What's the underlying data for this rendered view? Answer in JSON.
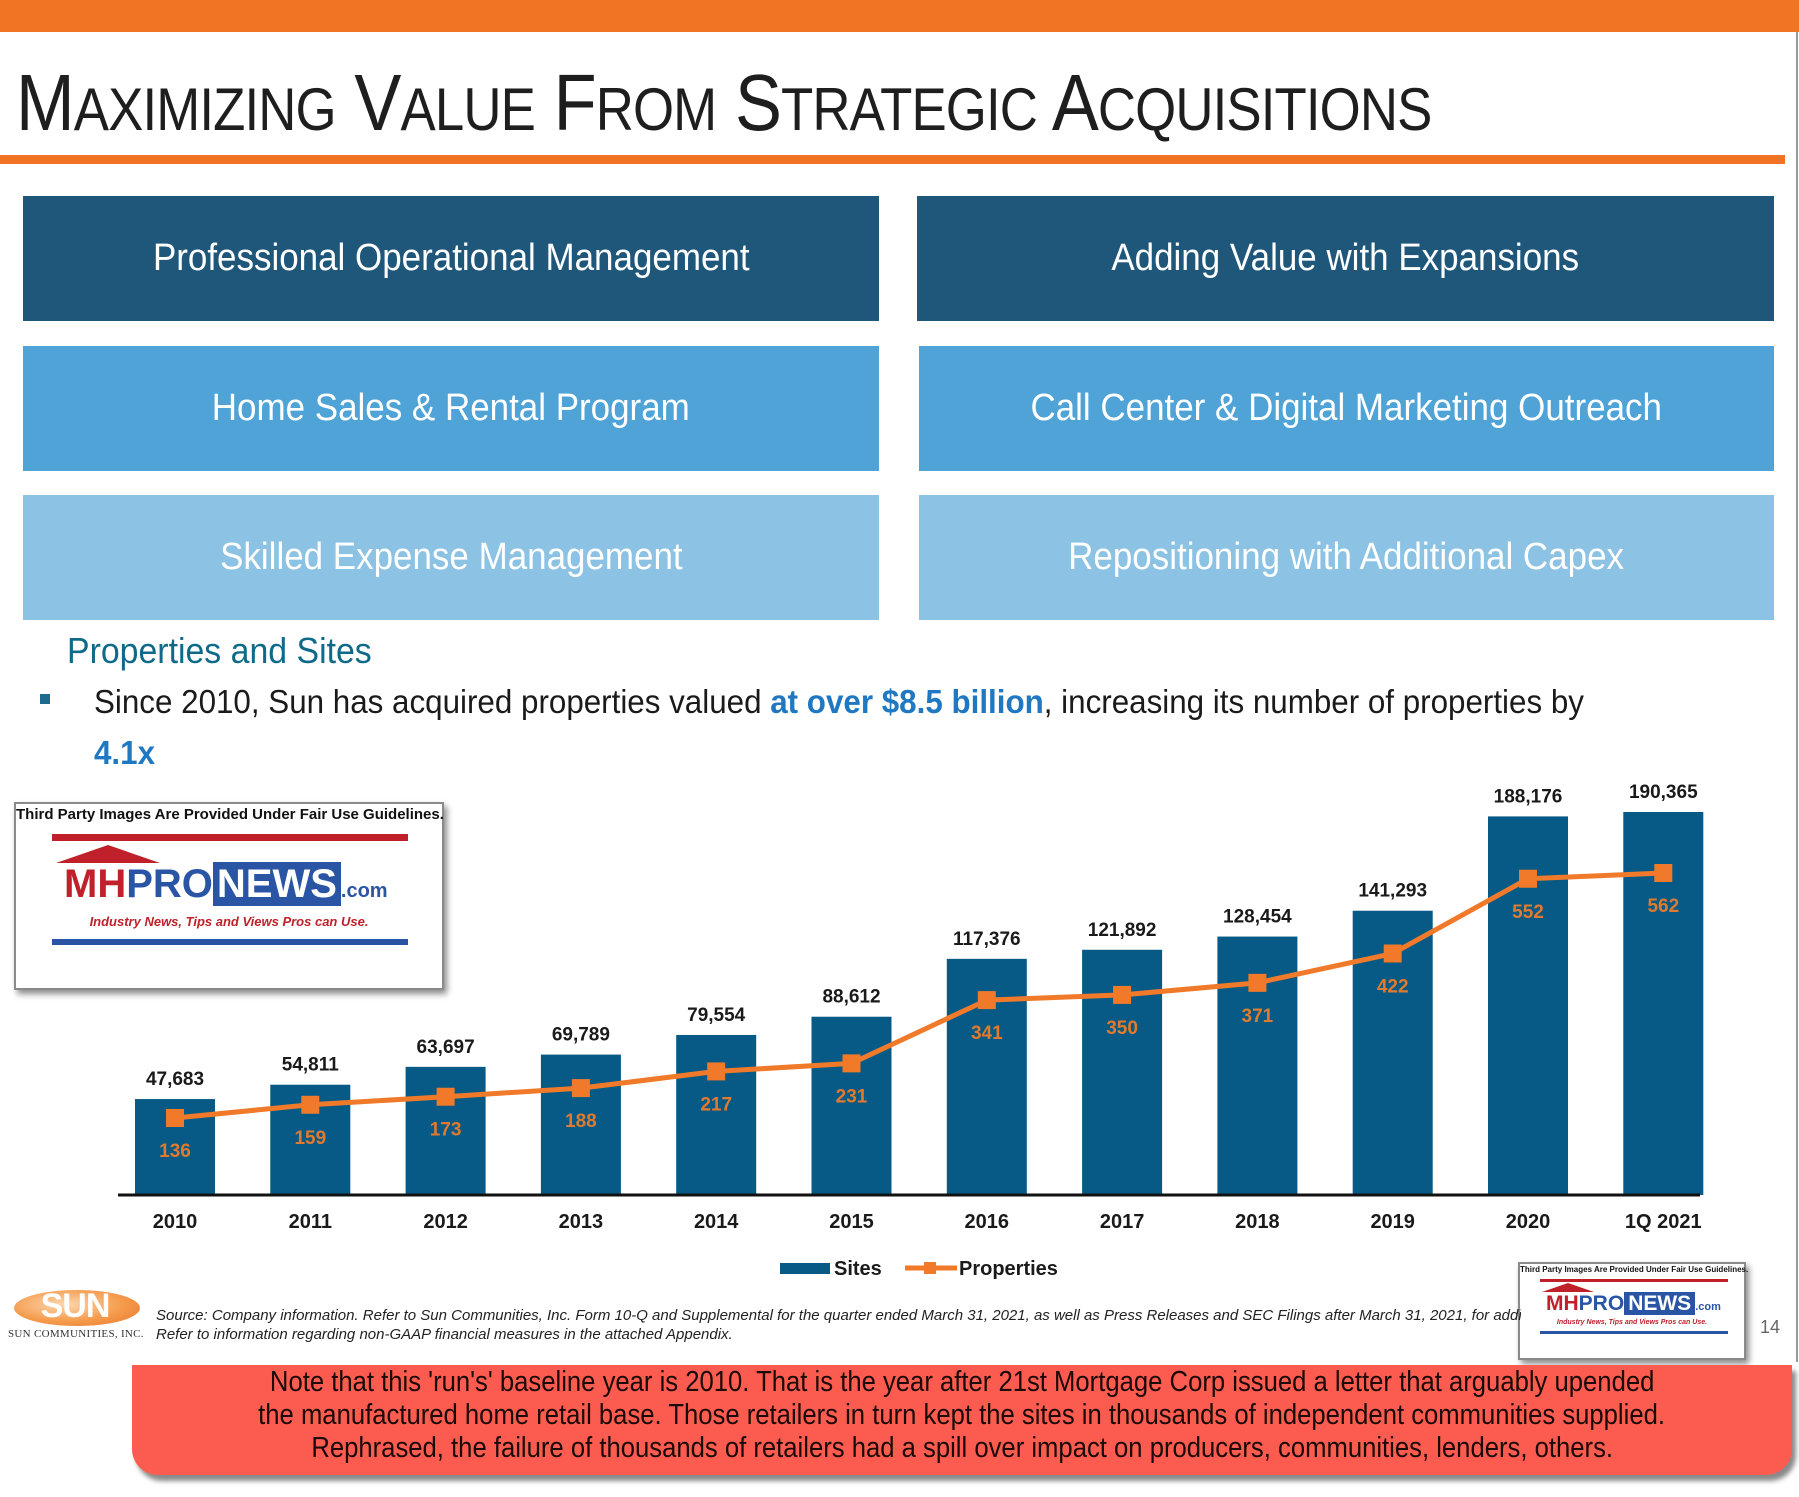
{
  "header": {
    "title_words": [
      {
        "cap": "M",
        "rest": "AXIMIZING"
      },
      {
        "cap": "V",
        "rest": "ALUE"
      },
      {
        "cap": "F",
        "rest": "ROM"
      },
      {
        "cap": "S",
        "rest": "TRATEGIC"
      },
      {
        "cap": "A",
        "rest": "CQUISITIONS"
      }
    ],
    "title": "Maximizing Value From Strategic Acquisitions"
  },
  "boxes": {
    "left": [
      "Professional Operational Management",
      "Home Sales & Rental Program",
      "Skilled Expense Management"
    ],
    "right": [
      "Adding Value with Expansions",
      "Call Center & Digital Marketing Outreach",
      "Repositioning with Additional Capex"
    ]
  },
  "section": {
    "heading": "Properties and Sites",
    "bullet": {
      "part1": "Since 2010, Sun has acquired properties valued ",
      "highlight1": "at over $8.5 billion",
      "part2": ", increasing its number of properties by ",
      "highlight2": "4.1x"
    }
  },
  "chart_data": {
    "type": "bar",
    "title": "Properties and Sites",
    "categories": [
      "2010",
      "2011",
      "2012",
      "2013",
      "2014",
      "2015",
      "2016",
      "2017",
      "2018",
      "2019",
      "2020",
      "1Q 2021"
    ],
    "series": [
      {
        "name": "Sites",
        "type": "bar",
        "color": "#065a85",
        "values": [
          47683,
          54811,
          63697,
          69789,
          79554,
          88612,
          117376,
          121892,
          128454,
          141293,
          188176,
          190365
        ],
        "labels": [
          "47,683",
          "54,811",
          "63,697",
          "69,789",
          "79,554",
          "88,612",
          "117,376",
          "121,892",
          "128,454",
          "141,293",
          "188,176",
          "190,365"
        ]
      },
      {
        "name": "Properties",
        "type": "line",
        "color": "#f07a2a",
        "values": [
          136,
          159,
          173,
          188,
          217,
          231,
          341,
          350,
          371,
          422,
          552,
          562
        ],
        "labels": [
          "136",
          "159",
          "173",
          "188",
          "217",
          "231",
          "341",
          "350",
          "371",
          "422",
          "552",
          "562"
        ]
      }
    ],
    "xlabel": "",
    "ylabel": "",
    "ylim_sites": [
      0,
      190365
    ],
    "ylim_properties": [
      0,
      562
    ],
    "grid": false,
    "legend": "bottom-center"
  },
  "watermark": {
    "note": "Third Party Images Are Provided Under Fair Use Guidelines.",
    "logo_mh": "MH",
    "logo_pro": "PRO",
    "logo_news": "NEWS",
    "logo_com": ".com",
    "tagline": "Industry News, Tips and Views Pros can Use."
  },
  "footer": {
    "logo_word": "SUN",
    "logo_sub": "SUN COMMUNITIES, INC.",
    "source_line1": "Source: Company information. Refer to Sun Communities, Inc. Form 10-Q and Supplemental for the quarter ended March 31, 2021, as well as Press Releases and SEC Filings after March 31, 2021, for additional information.",
    "source_line2": "Refer to information regarding non-GAAP financial measures in the attached Appendix.",
    "page_number": "14"
  },
  "note": {
    "lines": [
      "Note that this 'run's' baseline year is 2010. That is the year after 21st Mortgage Corp issued a letter that arguably upended",
      "the manufactured home retail base. Those retailers in turn kept the sites in thousands of independent communities supplied.",
      "Rephrased, the failure of thousands of retailers had a spill over impact on producers, communities, lenders, others."
    ]
  },
  "colors": {
    "accent_orange": "#f07424",
    "box_dark": "#1f577b",
    "box_mid": "#4fa3d6",
    "box_light": "#8cc2e4",
    "highlight_blue": "#1f78c1",
    "note_red": "#fb5c4f"
  }
}
